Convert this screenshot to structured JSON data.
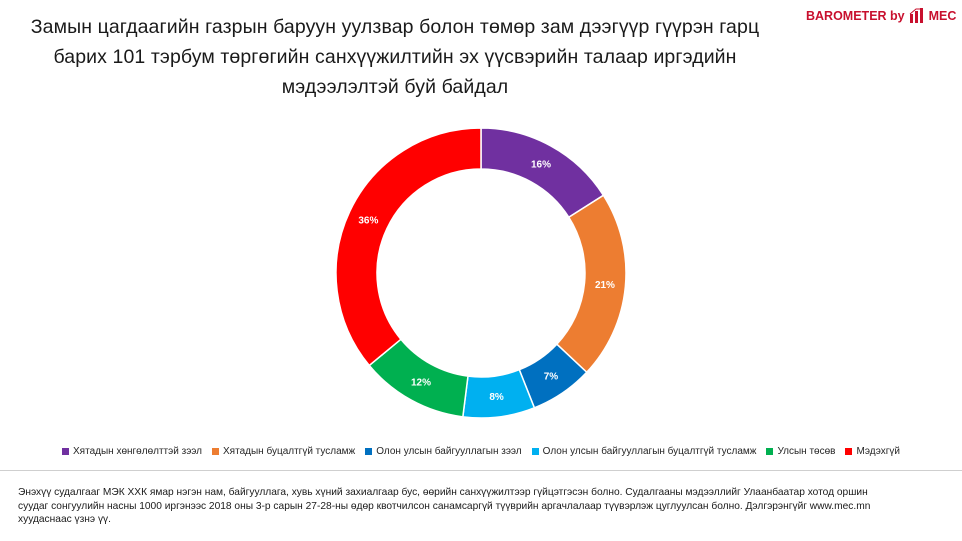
{
  "title": {
    "line1": "Замын цагдаагийн газрын баруун уулзвар болон төмөр зам дээгүүр гүүрэн гарц",
    "line2": "барих 101 тэрбум төргөгийн санхүүжилтийн эх үүсвэрийн талаар иргэдийн",
    "line3": "мэдээлэлтэй буй байдал"
  },
  "brand": {
    "text": "BAROMETER by",
    "logo_label": "MEC",
    "color": "#c8102e"
  },
  "chart_data": {
    "type": "pie",
    "variant": "donut",
    "title": "",
    "legend_position": "bottom",
    "series": [
      {
        "name": "Хятадын хөнгөлөлттэй зээл",
        "value": 16,
        "label": "16%",
        "color": "#7030a0"
      },
      {
        "name": "Хятадын буцалтгүй тусламж",
        "value": 21,
        "label": "21%",
        "color": "#ed7d31"
      },
      {
        "name": "Олон улсын байгууллагын зээл",
        "value": 7,
        "label": "7%",
        "color": "#0070c0"
      },
      {
        "name": "Олон улсын байгууллагын буцалтгүй тусламж",
        "value": 8,
        "label": "8%",
        "color": "#00b0f0"
      },
      {
        "name": "Улсын төсөв",
        "value": 12,
        "label": "12%",
        "color": "#00b050"
      },
      {
        "name": "Мэдэхгүй",
        "value": 36,
        "label": "36%",
        "color": "#ff0000"
      }
    ]
  },
  "footnote": {
    "line1": "Энэхүү судалгааг МЭК ХХК ямар нэгэн нам, байгууллага, хувь хүний захиалгаар бус, өөрийн санхүүжилтээр гүйцэтгэсэн болно. Судалгааны мэдээллийг Улаанбаатар хотод оршин",
    "line2": "суудаг сонгуулийн насны 1000 иргэнээс 2018 оны 3-р сарын 27-28-ны өдөр квотчилсон санамсаргүй түүврийн аргачлалаар түүвэрлэж цуглуулсан болно. Дэлгэрэнгүйг www.mec.mn",
    "line3": "хуудаснаас үзнэ үү."
  }
}
